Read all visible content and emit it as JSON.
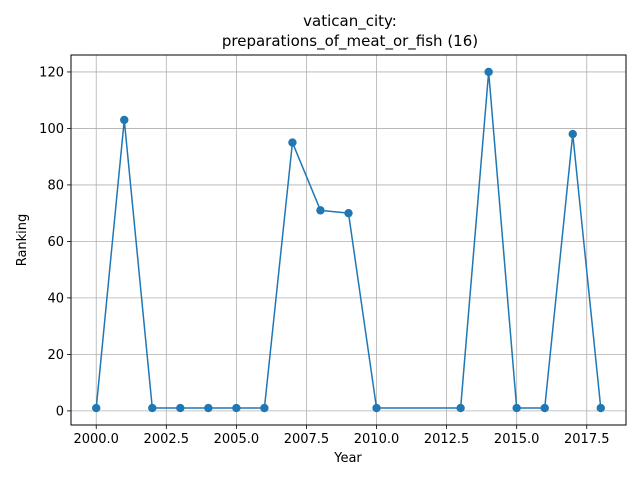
{
  "chart_data": {
    "type": "line",
    "title_line1": "vatican_city:",
    "title_line2": "preparations_of_meat_or_fish (16)",
    "xlabel": "Year",
    "ylabel": "Ranking",
    "x": [
      2000,
      2001,
      2002,
      2003,
      2004,
      2005,
      2006,
      2007,
      2008,
      2009,
      2010,
      2013,
      2014,
      2015,
      2016,
      2017,
      2018
    ],
    "y": [
      1,
      103,
      1,
      1,
      1,
      1,
      1,
      95,
      71,
      70,
      1,
      1,
      120,
      1,
      1,
      98,
      1
    ],
    "xlim": [
      1999.1,
      2018.9
    ],
    "ylim": [
      -5,
      126
    ],
    "xticks": [
      2000,
      2002.5,
      2005,
      2007.5,
      2010,
      2012.5,
      2015,
      2017.5
    ],
    "xtick_labels": [
      "2000.0",
      "2002.5",
      "2005.0",
      "2007.5",
      "2010.0",
      "2012.5",
      "2015.0",
      "2017.5"
    ],
    "yticks": [
      0,
      20,
      40,
      60,
      80,
      100,
      120
    ],
    "ytick_labels": [
      "0",
      "20",
      "40",
      "60",
      "80",
      "100",
      "120"
    ],
    "grid": true,
    "color": "#1f77b4"
  }
}
